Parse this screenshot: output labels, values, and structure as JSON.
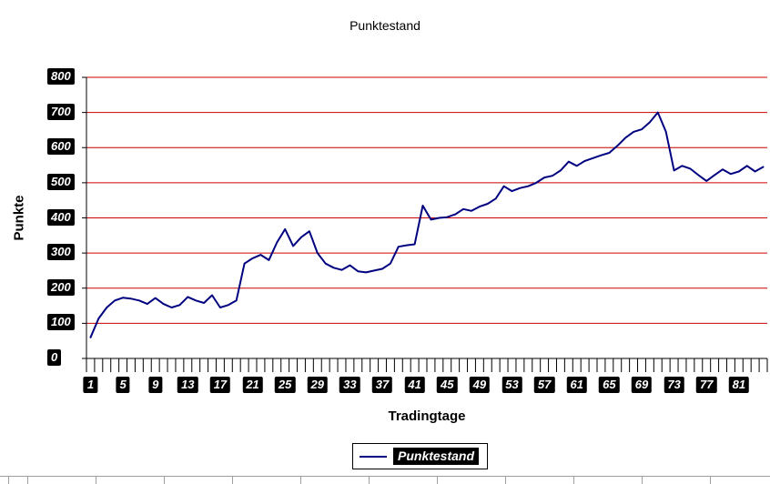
{
  "chart": {
    "title": "Punktestand",
    "y_axis_title": "Punkte",
    "x_axis_title": "Tradingtage",
    "legend_label": "Punktestand"
  },
  "chart_data": {
    "type": "line",
    "title": "Punktestand",
    "xlabel": "Tradingtage",
    "ylabel": "Punkte",
    "ylim": [
      0,
      800
    ],
    "y_ticks": [
      0,
      100,
      200,
      300,
      400,
      500,
      600,
      700,
      800
    ],
    "x_tick_labels": [
      1,
      5,
      9,
      13,
      17,
      21,
      25,
      29,
      33,
      37,
      41,
      45,
      49,
      53,
      57,
      61,
      65,
      69,
      73,
      77,
      81
    ],
    "grid": "horizontal-red-lines",
    "legend_position": "bottom",
    "colors": {
      "gridline": "#cc0000",
      "series": "#000080",
      "axis": "#000000",
      "tick_label_bg": "#000000",
      "tick_label_fg": "#ffffff"
    },
    "series": [
      {
        "name": "Punktestand",
        "color": "#000080",
        "x_start": 1,
        "values": [
          60,
          114,
          145,
          165,
          173,
          170,
          165,
          155,
          172,
          155,
          145,
          152,
          175,
          165,
          158,
          180,
          145,
          152,
          165,
          270,
          285,
          295,
          280,
          330,
          368,
          320,
          345,
          362,
          300,
          270,
          258,
          252,
          265,
          248,
          245,
          250,
          255,
          270,
          318,
          322,
          325,
          435,
          395,
          400,
          402,
          410,
          425,
          420,
          432,
          440,
          455,
          490,
          476,
          485,
          490,
          500,
          515,
          520,
          535,
          560,
          548,
          562,
          570,
          578,
          585,
          605,
          628,
          645,
          652,
          672,
          700,
          645,
          535,
          548,
          540,
          522,
          505,
          522,
          538,
          525,
          532,
          548,
          532,
          545
        ]
      }
    ]
  }
}
